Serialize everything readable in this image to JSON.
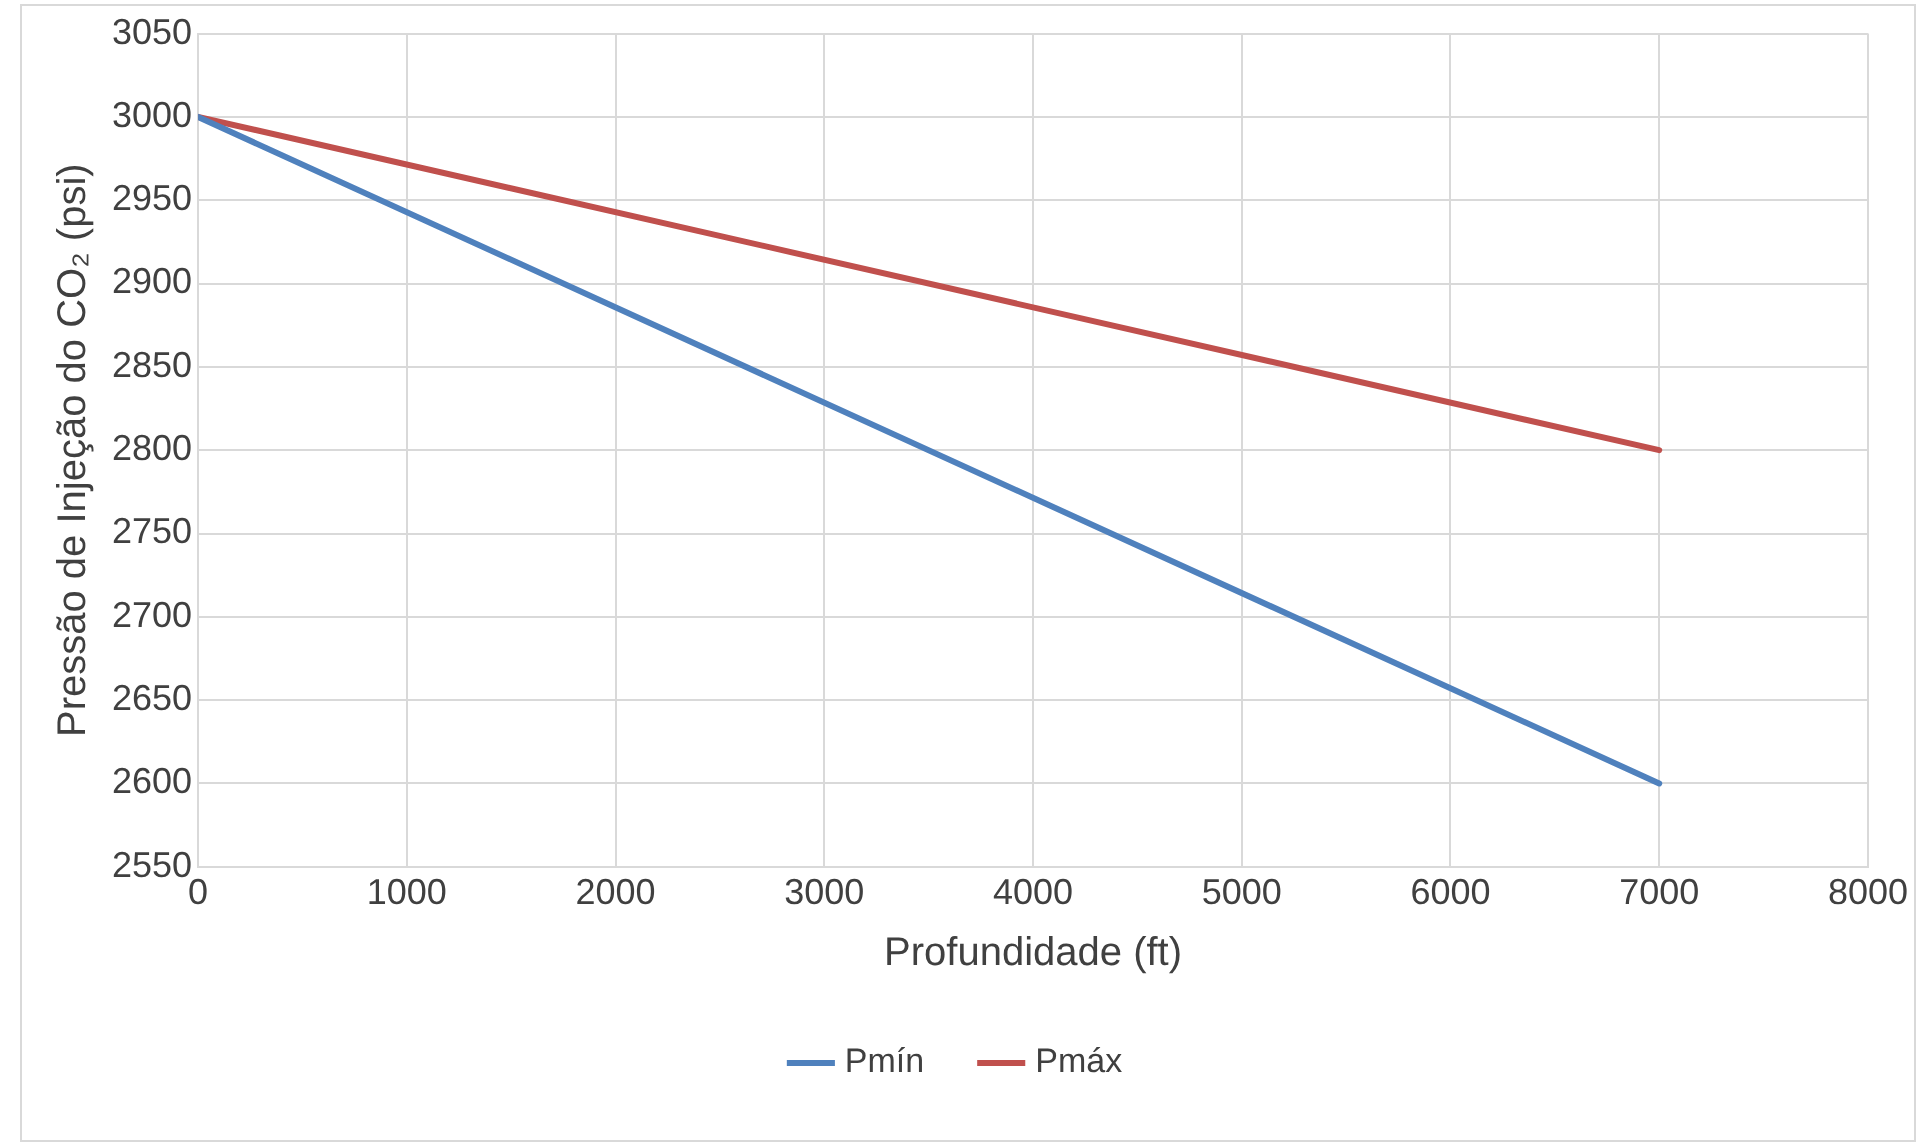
{
  "chart_data": {
    "type": "line",
    "xlabel": "Profundidade (ft)",
    "ylabel": "Pressão de Injeção do CO₂ (psi)",
    "x": [
      0,
      7000
    ],
    "series": [
      {
        "name": "Pmín",
        "color": "#4f81bd",
        "values": [
          3000,
          2600
        ]
      },
      {
        "name": "Pmáx",
        "color": "#c0504d",
        "values": [
          3000,
          2800
        ]
      }
    ],
    "xlim": [
      0,
      8000
    ],
    "xticks": [
      0,
      1000,
      2000,
      3000,
      4000,
      5000,
      6000,
      7000,
      8000
    ],
    "ylim": [
      2550,
      3050
    ],
    "yticks": [
      2550,
      2600,
      2650,
      2700,
      2750,
      2800,
      2850,
      2900,
      2950,
      3000,
      3050
    ],
    "grid": true,
    "legend": "bottom",
    "marker": "none",
    "line_style": "solid"
  }
}
